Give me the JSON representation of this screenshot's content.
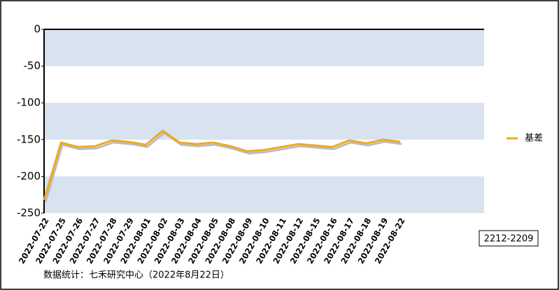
{
  "chart_data": {
    "type": "line",
    "categories": [
      "2022-07-22",
      "2022-07-25",
      "2022-07-26",
      "2022-07-27",
      "2022-07-28",
      "2022-07-29",
      "2022-08-01",
      "2022-08-02",
      "2022-08-03",
      "2022-08-04",
      "2022-08-05",
      "2022-08-08",
      "2022-08-09",
      "2022-08-10",
      "2022-08-11",
      "2022-08-12",
      "2022-08-15",
      "2022-08-16",
      "2022-08-17",
      "2022-08-18",
      "2022-08-19",
      "2022-08-22"
    ],
    "series": [
      {
        "name": "基差",
        "color": "#eeaa22",
        "values": [
          -232,
          -154,
          -160,
          -159,
          -151,
          -153,
          -157,
          -138,
          -154,
          -156,
          -154,
          -159,
          -166,
          -164,
          -160,
          -156,
          -158,
          -160,
          -151,
          -155,
          -150,
          -153
        ]
      }
    ],
    "ylim": [
      -250,
      0
    ],
    "yticks": [
      0,
      -50,
      -100,
      -150,
      -200,
      -250
    ],
    "bands": true,
    "band_color": "#d8e3ef",
    "legend": "right",
    "annotation": "2212-2209",
    "source": "数据统计：七禾研究中心（2022年8月22日）"
  }
}
